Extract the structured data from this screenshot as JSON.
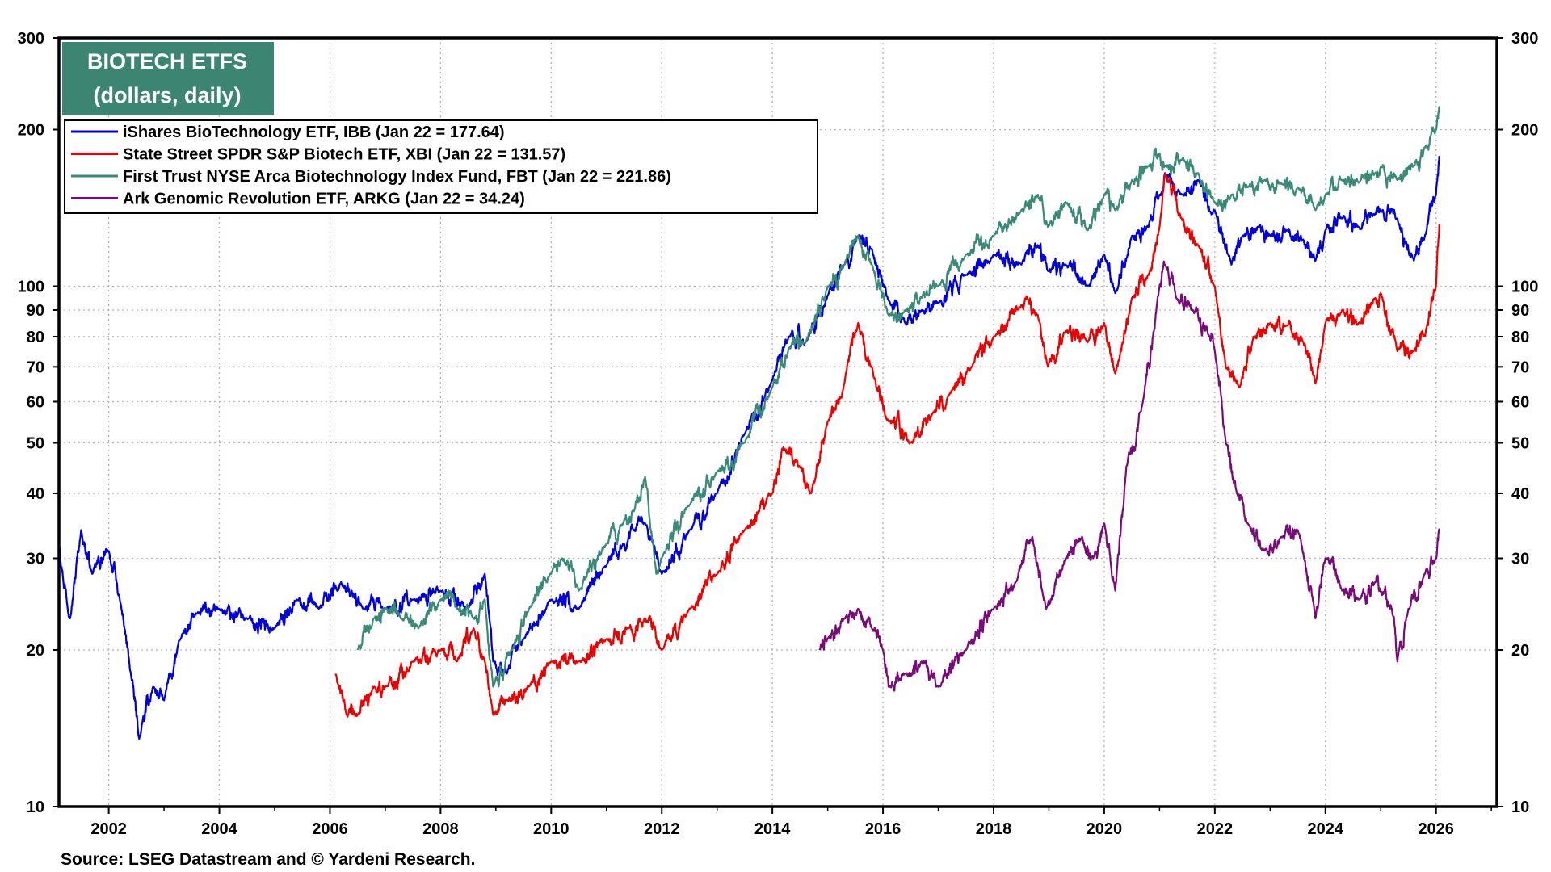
{
  "chart_data": {
    "type": "line",
    "title": "BIOTECH ETFS",
    "subtitle": "(dollars, daily)",
    "source": "Source: LSEG Datastream and © Yardeni Research.",
    "y_scale": "log",
    "ylim": [
      10,
      300
    ],
    "xlim": [
      2001.1,
      2027.1
    ],
    "y_ticks": [
      10,
      20,
      30,
      40,
      50,
      60,
      70,
      80,
      90,
      100,
      200,
      300
    ],
    "y_tick_labels": [
      "10",
      "20",
      "30",
      "40",
      "50",
      "60",
      "70",
      "80",
      "90",
      "100",
      "200",
      "300"
    ],
    "x_ticks": [
      2002,
      2004,
      2006,
      2008,
      2010,
      2012,
      2014,
      2016,
      2018,
      2020,
      2022,
      2024,
      2026
    ],
    "x_tick_labels": [
      "2002",
      "2004",
      "2006",
      "2008",
      "2010",
      "2012",
      "2014",
      "2016",
      "2018",
      "2020",
      "2022",
      "2024",
      "2026"
    ],
    "legend_position": "top-left",
    "series": [
      {
        "name": "iShares BioTechnology ETF, IBB (Jan 22 = 177.64)",
        "color": "#0000dd",
        "x": [
          2001.1,
          2001.3,
          2001.5,
          2001.7,
          2002.0,
          2002.2,
          2002.4,
          2002.55,
          2002.8,
          2003.0,
          2003.3,
          2003.6,
          2004.0,
          2004.5,
          2005.0,
          2005.4,
          2005.8,
          2006.2,
          2006.6,
          2007.0,
          2007.5,
          2008.0,
          2008.5,
          2008.8,
          2008.95,
          2009.2,
          2009.5,
          2010.0,
          2010.5,
          2011.0,
          2011.3,
          2011.5,
          2011.7,
          2012.0,
          2012.5,
          2013.0,
          2013.5,
          2014.0,
          2014.3,
          2014.6,
          2015.0,
          2015.3,
          2015.55,
          2015.8,
          2016.1,
          2016.4,
          2016.7,
          2017.0,
          2017.5,
          2018.0,
          2018.5,
          2018.8,
          2018.98,
          2019.3,
          2019.7,
          2020.0,
          2020.2,
          2020.5,
          2020.8,
          2021.0,
          2021.1,
          2021.4,
          2021.7,
          2022.0,
          2022.3,
          2022.5,
          2022.8,
          2023.0,
          2023.3,
          2023.6,
          2023.82,
          2024.0,
          2024.3,
          2024.6,
          2024.9,
          2025.0,
          2025.3,
          2025.6,
          2025.8,
          2026.0,
          2026.06
        ],
        "values": [
          32,
          23,
          34,
          28,
          31,
          25,
          18,
          13.5,
          17,
          16,
          21,
          23.5,
          24,
          23,
          22,
          25,
          24,
          27,
          24,
          24,
          25,
          26,
          24,
          28,
          19,
          18,
          21,
          25,
          24,
          29,
          32,
          34,
          35,
          28,
          34,
          40,
          52,
          66,
          80,
          78,
          96,
          110,
          125,
          118,
          94,
          85,
          90,
          93,
          105,
          115,
          110,
          120,
          107,
          110,
          100,
          115,
          97,
          125,
          130,
          150,
          165,
          150,
          160,
          140,
          110,
          125,
          130,
          125,
          128,
          123,
          112,
          128,
          135,
          130,
          138,
          140,
          135,
          112,
          125,
          150,
          178
        ]
      },
      {
        "name": "State Street SPDR S&P Biotech ETF, XBI (Jan 22 = 131.57)",
        "color": "#ee0000",
        "x": [
          2006.1,
          2006.3,
          2006.5,
          2006.8,
          2007.0,
          2007.5,
          2008.0,
          2008.3,
          2008.6,
          2008.8,
          2008.95,
          2009.2,
          2009.6,
          2010.0,
          2010.5,
          2011.0,
          2011.4,
          2011.7,
          2012.0,
          2012.5,
          2013.0,
          2013.5,
          2014.0,
          2014.2,
          2014.5,
          2014.7,
          2015.0,
          2015.3,
          2015.55,
          2015.8,
          2016.1,
          2016.5,
          2016.9,
          2017.2,
          2017.6,
          2018.0,
          2018.5,
          2018.8,
          2018.98,
          2019.3,
          2019.7,
          2020.0,
          2020.2,
          2020.5,
          2020.8,
          2021.0,
          2021.1,
          2021.4,
          2021.7,
          2022.0,
          2022.2,
          2022.45,
          2022.7,
          2023.0,
          2023.3,
          2023.6,
          2023.82,
          2024.0,
          2024.3,
          2024.6,
          2024.9,
          2025.0,
          2025.3,
          2025.6,
          2025.8,
          2026.0,
          2026.06
        ],
        "values": [
          18,
          15,
          15,
          17,
          17,
          19,
          20,
          19,
          22,
          19,
          15,
          16,
          17,
          19,
          19,
          21,
          22,
          23,
          20,
          24,
          28,
          34,
          40,
          49,
          45,
          40,
          55,
          65,
          85,
          70,
          55,
          50,
          57,
          62,
          70,
          80,
          92,
          88,
          70,
          82,
          78,
          85,
          68,
          95,
          105,
          130,
          165,
          135,
          120,
          100,
          70,
          64,
          80,
          85,
          84,
          78,
          65,
          85,
          90,
          85,
          95,
          97,
          75,
          75,
          80,
          100,
          131.57
        ]
      },
      {
        "name": "First Trust NYSE Arca Biotechnology Index Fund, FBT (Jan 22 = 221.86)",
        "color": "#3a8a78",
        "x": [
          2006.5,
          2006.8,
          2007.0,
          2007.3,
          2007.6,
          2008.0,
          2008.3,
          2008.6,
          2008.8,
          2008.95,
          2009.3,
          2009.6,
          2010.0,
          2010.2,
          2010.5,
          2011.0,
          2011.3,
          2011.5,
          2011.7,
          2011.9,
          2012.0,
          2012.5,
          2013.0,
          2013.5,
          2014.0,
          2014.3,
          2014.6,
          2015.0,
          2015.3,
          2015.55,
          2015.8,
          2016.1,
          2016.4,
          2016.7,
          2017.0,
          2017.5,
          2018.0,
          2018.5,
          2018.8,
          2018.98,
          2019.3,
          2019.7,
          2020.0,
          2020.2,
          2020.5,
          2020.8,
          2021.0,
          2021.1,
          2021.4,
          2021.7,
          2022.0,
          2022.3,
          2022.6,
          2022.9,
          2023.2,
          2023.5,
          2023.82,
          2024.0,
          2024.3,
          2024.6,
          2024.9,
          2025.0,
          2025.3,
          2025.6,
          2025.8,
          2026.0,
          2026.06
        ],
        "values": [
          20,
          23,
          24,
          23,
          22,
          25,
          24,
          23,
          25,
          17,
          20,
          24,
          28,
          30,
          26,
          32,
          35,
          37,
          43,
          28,
          30,
          38,
          44,
          50,
          64,
          76,
          78,
          100,
          110,
          125,
          110,
          88,
          90,
          95,
          100,
          115,
          125,
          140,
          150,
          130,
          145,
          128,
          150,
          140,
          160,
          170,
          180,
          170,
          175,
          165,
          145,
          150,
          155,
          160,
          158,
          155,
          140,
          150,
          160,
          158,
          165,
          170,
          160,
          170,
          185,
          200,
          221.86
        ]
      },
      {
        "name": "Ark Genomic Revolution ETF, ARKG (Jan 22 = 34.24)",
        "color": "#7a0a7a",
        "x": [
          2014.85,
          2015.0,
          2015.3,
          2015.55,
          2015.8,
          2016.0,
          2016.1,
          2016.4,
          2016.7,
          2017.0,
          2017.5,
          2018.0,
          2018.4,
          2018.7,
          2018.95,
          2019.3,
          2019.6,
          2019.8,
          2020.0,
          2020.2,
          2020.4,
          2020.7,
          2021.0,
          2021.1,
          2021.3,
          2021.6,
          2021.9,
          2022.0,
          2022.2,
          2022.4,
          2022.6,
          2022.9,
          2023.2,
          2023.5,
          2023.82,
          2024.0,
          2024.3,
          2024.6,
          2024.9,
          2025.0,
          2025.2,
          2025.3,
          2025.5,
          2025.8,
          2026.0,
          2026.06
        ],
        "values": [
          20,
          21,
          23,
          24,
          22,
          20,
          17,
          18,
          19,
          17,
          20,
          24,
          27,
          33,
          24,
          30,
          33,
          30,
          35,
          26,
          45,
          60,
          100,
          110,
          95,
          90,
          80,
          75,
          50,
          40,
          35,
          31,
          33,
          34,
          23,
          30,
          26,
          25,
          27,
          26,
          24,
          19,
          24,
          28,
          30,
          34.24
        ]
      }
    ]
  }
}
